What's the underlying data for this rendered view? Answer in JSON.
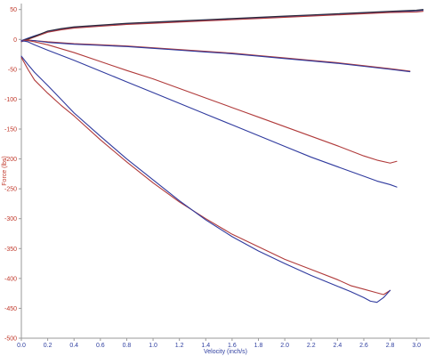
{
  "chart_data": {
    "type": "line",
    "xlabel": "Velocity (inch/s)",
    "ylabel": "Force (lbs)",
    "xlim": [
      0.0,
      3.1
    ],
    "ylim": [
      -500,
      60
    ],
    "x_ticks": [
      "0.0",
      "0.2",
      "0.4",
      "0.6",
      "0.8",
      "1.0",
      "1.2",
      "1.4",
      "1.6",
      "1.8",
      "2.0",
      "2.2",
      "2.4",
      "2.6",
      "2.8",
      "3.0"
    ],
    "y_ticks": [
      "50",
      "0",
      "-50",
      "-100",
      "-150",
      "-200",
      "-250",
      "-300",
      "-350",
      "-400",
      "-450",
      "-500"
    ],
    "grid": false,
    "colors": {
      "red": "#b03a3a",
      "blue": "#2f3a9e",
      "dark": "#2a2a3a",
      "axis_red": "#c0392b",
      "axis_blue": "#2f3fa0"
    },
    "series": [
      {
        "color": "blue",
        "x": [
          0.0,
          0.05,
          0.1,
          0.2,
          0.3,
          0.4,
          0.6,
          0.8,
          1.0,
          1.2,
          1.4,
          1.6,
          1.8,
          2.0,
          2.2,
          2.4,
          2.6,
          2.8,
          3.0,
          3.05
        ],
        "y": [
          -2,
          2,
          6,
          13,
          17,
          20,
          23,
          26,
          28,
          30,
          32,
          34,
          36,
          38,
          40,
          42,
          44,
          46,
          48,
          49
        ]
      },
      {
        "color": "red",
        "x": [
          0.0,
          0.05,
          0.1,
          0.2,
          0.3,
          0.4,
          0.6,
          0.8,
          1.0,
          1.2,
          1.4,
          1.6,
          1.8,
          2.0,
          2.2,
          2.4,
          2.6,
          2.8,
          3.0,
          3.05
        ],
        "y": [
          -4,
          0,
          4,
          12,
          16,
          19,
          22,
          25,
          27,
          29,
          31,
          33,
          35,
          37,
          39,
          41,
          43,
          45,
          46,
          47
        ]
      },
      {
        "color": "dark",
        "x": [
          0.0,
          0.05,
          0.1,
          0.2,
          0.3,
          0.4,
          0.6,
          0.8,
          1.0,
          1.2,
          1.4,
          1.6,
          1.8,
          2.0,
          2.2,
          2.4,
          2.6,
          2.8,
          3.0,
          3.05
        ],
        "y": [
          -3,
          1,
          5,
          14,
          18,
          21,
          24,
          27,
          29,
          31,
          33,
          35,
          37,
          39,
          41,
          43,
          45,
          47,
          49,
          50
        ]
      },
      {
        "color": "red",
        "x": [
          0.0,
          0.05,
          0.1,
          0.2,
          0.4,
          0.6,
          0.8,
          1.0,
          1.2,
          1.4,
          1.6,
          1.8,
          2.0,
          2.2,
          2.4,
          2.6,
          2.8,
          2.95
        ],
        "y": [
          -2,
          -1,
          -2,
          -4,
          -7,
          -9,
          -11,
          -14,
          -17,
          -20,
          -23,
          -27,
          -31,
          -35,
          -39,
          -44,
          -49,
          -53
        ]
      },
      {
        "color": "blue",
        "x": [
          0.0,
          0.05,
          0.1,
          0.2,
          0.4,
          0.6,
          0.8,
          1.0,
          1.2,
          1.4,
          1.6,
          1.8,
          2.0,
          2.2,
          2.4,
          2.6,
          2.8,
          2.95
        ],
        "y": [
          -3,
          -2,
          -2,
          -5,
          -8,
          -10,
          -12,
          -15,
          -18,
          -21,
          -24,
          -28,
          -32,
          -36,
          -40,
          -45,
          -50,
          -54
        ]
      },
      {
        "color": "red",
        "x": [
          0.0,
          0.05,
          0.1,
          0.2,
          0.4,
          0.6,
          0.8,
          1.0,
          1.2,
          1.4,
          1.6,
          1.8,
          2.0,
          2.2,
          2.4,
          2.6,
          2.7,
          2.8,
          2.85
        ],
        "y": [
          -2,
          -2,
          -4,
          -9,
          -22,
          -37,
          -52,
          -66,
          -82,
          -98,
          -114,
          -130,
          -146,
          -162,
          -178,
          -195,
          -202,
          -207,
          -204
        ]
      },
      {
        "color": "blue",
        "x": [
          0.0,
          0.05,
          0.1,
          0.2,
          0.4,
          0.6,
          0.8,
          1.0,
          1.2,
          1.4,
          1.6,
          1.8,
          2.0,
          2.2,
          2.4,
          2.6,
          2.7,
          2.8,
          2.85
        ],
        "y": [
          -2,
          -4,
          -9,
          -18,
          -35,
          -53,
          -71,
          -89,
          -107,
          -125,
          -143,
          -161,
          -179,
          -197,
          -213,
          -229,
          -237,
          -243,
          -247
        ]
      },
      {
        "color": "red",
        "x": [
          0.0,
          0.05,
          0.1,
          0.2,
          0.3,
          0.4,
          0.6,
          0.8,
          1.0,
          1.2,
          1.4,
          1.6,
          1.8,
          2.0,
          2.2,
          2.4,
          2.5,
          2.6,
          2.7,
          2.75,
          2.8
        ],
        "y": [
          -30,
          -50,
          -68,
          -90,
          -110,
          -128,
          -168,
          -205,
          -240,
          -272,
          -300,
          -326,
          -347,
          -368,
          -385,
          -402,
          -412,
          -418,
          -424,
          -427,
          -420
        ]
      },
      {
        "color": "blue",
        "x": [
          0.0,
          0.05,
          0.1,
          0.2,
          0.3,
          0.4,
          0.6,
          0.8,
          1.0,
          1.2,
          1.4,
          1.6,
          1.8,
          2.0,
          2.2,
          2.4,
          2.5,
          2.6,
          2.65,
          2.7,
          2.75,
          2.8
        ],
        "y": [
          -28,
          -42,
          -55,
          -77,
          -100,
          -123,
          -162,
          -200,
          -235,
          -270,
          -302,
          -330,
          -354,
          -375,
          -395,
          -413,
          -422,
          -432,
          -438,
          -440,
          -432,
          -420
        ]
      }
    ]
  }
}
